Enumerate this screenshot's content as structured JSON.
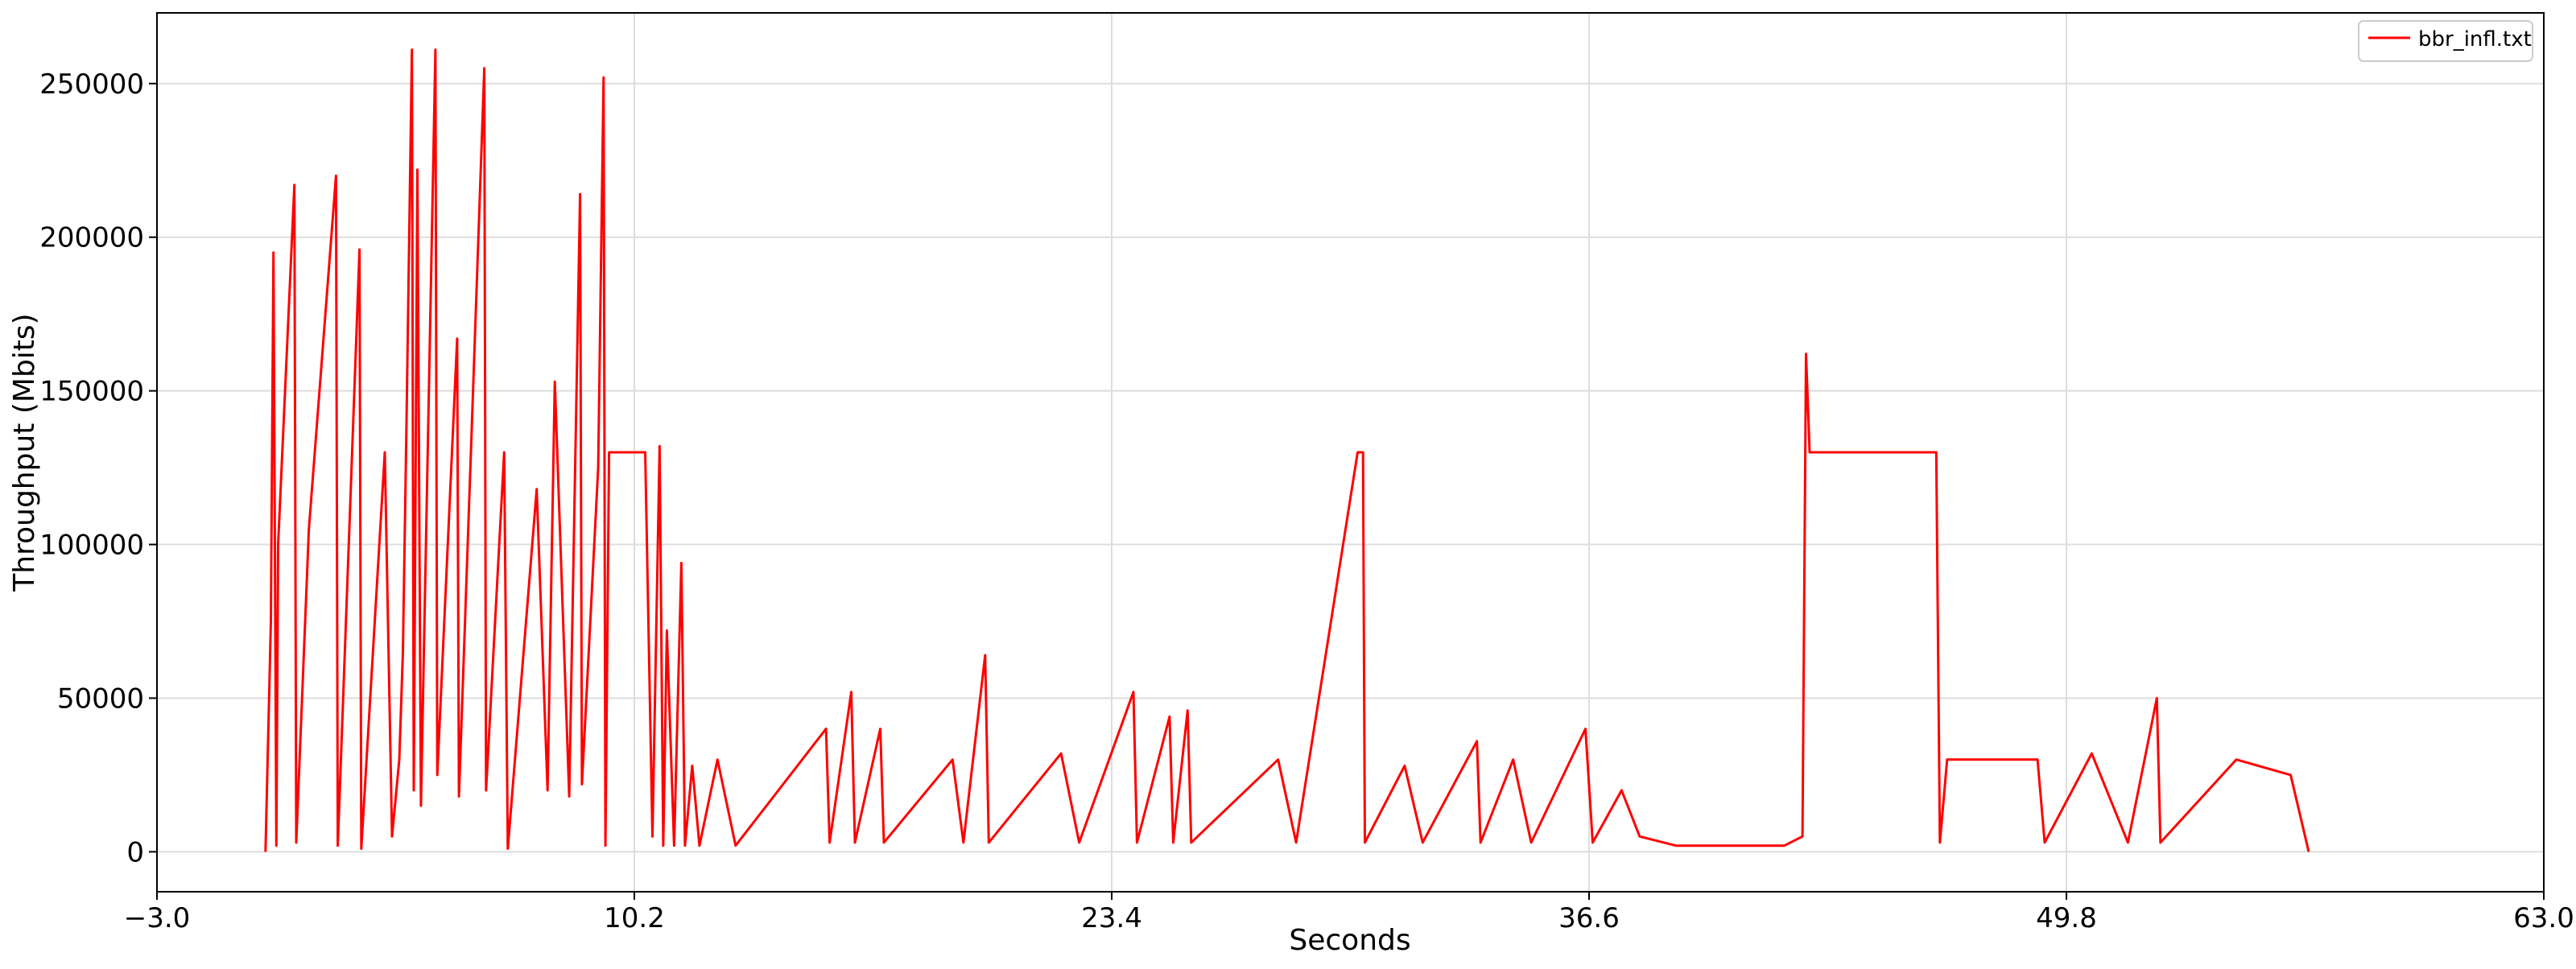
{
  "chart_data": {
    "type": "line",
    "title": "",
    "xlabel": "Seconds",
    "ylabel": "Throughput (Mbits)",
    "xlim": [
      -3.0,
      63.0
    ],
    "ylim": [
      -13000,
      273000
    ],
    "xticks": [
      -3.0,
      10.2,
      23.4,
      36.6,
      49.8,
      63.0
    ],
    "xtick_labels": [
      "−3.0",
      "10.2",
      "23.4",
      "36.6",
      "49.8",
      "63.0"
    ],
    "yticks": [
      0,
      50000,
      100000,
      150000,
      200000,
      250000
    ],
    "ytick_labels": [
      "0",
      "50000",
      "100000",
      "150000",
      "200000",
      "250000"
    ],
    "grid": true,
    "legend_position": "top-right",
    "series": [
      {
        "name": "bbr_infl.txt",
        "color": "#ff0000",
        "points": [
          [
            0.0,
            0
          ],
          [
            0.15,
            75000
          ],
          [
            0.22,
            195000
          ],
          [
            0.3,
            2000
          ],
          [
            0.35,
            100000
          ],
          [
            0.8,
            217000
          ],
          [
            0.85,
            3000
          ],
          [
            1.2,
            105000
          ],
          [
            1.95,
            220000
          ],
          [
            2.0,
            2000
          ],
          [
            2.6,
            196000
          ],
          [
            2.65,
            1000
          ],
          [
            3.3,
            130000
          ],
          [
            3.5,
            5000
          ],
          [
            3.7,
            30000
          ],
          [
            3.8,
            65000
          ],
          [
            3.9,
            140000
          ],
          [
            4.05,
            261000
          ],
          [
            4.1,
            20000
          ],
          [
            4.2,
            222000
          ],
          [
            4.3,
            15000
          ],
          [
            4.7,
            261000
          ],
          [
            4.75,
            25000
          ],
          [
            5.3,
            167000
          ],
          [
            5.35,
            18000
          ],
          [
            6.05,
            255000
          ],
          [
            6.1,
            20000
          ],
          [
            6.6,
            130000
          ],
          [
            6.7,
            1000
          ],
          [
            7.5,
            118000
          ],
          [
            7.8,
            20000
          ],
          [
            8.0,
            153000
          ],
          [
            8.4,
            18000
          ],
          [
            8.7,
            214000
          ],
          [
            8.75,
            22000
          ],
          [
            9.2,
            125000
          ],
          [
            9.35,
            252000
          ],
          [
            9.4,
            2000
          ],
          [
            9.5,
            130000
          ],
          [
            10.5,
            130000
          ],
          [
            10.7,
            5000
          ],
          [
            10.9,
            132000
          ],
          [
            11.0,
            2000
          ],
          [
            11.1,
            72000
          ],
          [
            11.3,
            2000
          ],
          [
            11.5,
            94000
          ],
          [
            11.6,
            2000
          ],
          [
            11.8,
            28000
          ],
          [
            12.0,
            2000
          ],
          [
            12.5,
            30000
          ],
          [
            13.0,
            2000
          ],
          [
            15.5,
            40000
          ],
          [
            15.6,
            3000
          ],
          [
            16.2,
            52000
          ],
          [
            16.3,
            3000
          ],
          [
            17.0,
            40000
          ],
          [
            17.1,
            3000
          ],
          [
            19.0,
            30000
          ],
          [
            19.3,
            3000
          ],
          [
            19.9,
            64000
          ],
          [
            20.0,
            3000
          ],
          [
            22.0,
            32000
          ],
          [
            22.5,
            3000
          ],
          [
            24.0,
            52000
          ],
          [
            24.1,
            3000
          ],
          [
            25.0,
            44000
          ],
          [
            25.1,
            3000
          ],
          [
            25.5,
            46000
          ],
          [
            25.6,
            3000
          ],
          [
            28.0,
            30000
          ],
          [
            28.5,
            3000
          ],
          [
            30.2,
            130000
          ],
          [
            30.35,
            130000
          ],
          [
            30.4,
            3000
          ],
          [
            31.5,
            28000
          ],
          [
            32.0,
            3000
          ],
          [
            33.5,
            36000
          ],
          [
            33.6,
            3000
          ],
          [
            34.5,
            30000
          ],
          [
            35.0,
            3000
          ],
          [
            36.5,
            40000
          ],
          [
            36.7,
            3000
          ],
          [
            37.5,
            20000
          ],
          [
            38.0,
            5000
          ],
          [
            39.0,
            2000
          ],
          [
            42.0,
            2000
          ],
          [
            42.5,
            5000
          ],
          [
            42.6,
            162000
          ],
          [
            42.7,
            130000
          ],
          [
            46.2,
            130000
          ],
          [
            46.3,
            3000
          ],
          [
            46.5,
            30000
          ],
          [
            49.0,
            30000
          ],
          [
            49.2,
            3000
          ],
          [
            50.5,
            32000
          ],
          [
            51.5,
            3000
          ],
          [
            52.3,
            50000
          ],
          [
            52.4,
            3000
          ],
          [
            54.5,
            30000
          ],
          [
            56.0,
            25000
          ],
          [
            56.5,
            0
          ]
        ]
      }
    ]
  }
}
